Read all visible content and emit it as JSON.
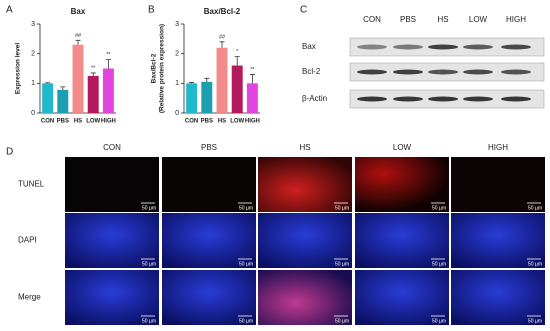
{
  "chart_data": [
    {
      "type": "bar",
      "title": "Bax",
      "ylabel": [
        "Expression level"
      ],
      "categories": [
        "CON",
        "PBS",
        "HS",
        "LOW",
        "HIGH"
      ],
      "values": [
        1.0,
        0.78,
        2.3,
        1.25,
        1.5
      ],
      "errors": [
        0.02,
        0.1,
        0.15,
        0.1,
        0.3
      ],
      "annotations": [
        null,
        null,
        "##",
        "**",
        "**"
      ],
      "colors": [
        "#22b8cc",
        "#1c9fb0",
        "#f48a8a",
        "#b3195e",
        "#e245e0"
      ],
      "ylim": [
        0,
        3
      ],
      "yticks": [
        0,
        1,
        2,
        3
      ]
    },
    {
      "type": "bar",
      "title": "Bax/Bcl-2",
      "ylabel": [
        "Bax/Bcl-2",
        "(Relative protein expression)"
      ],
      "categories": [
        "CON",
        "PBS",
        "HS",
        "LOW",
        "HIGH"
      ],
      "values": [
        1.0,
        1.05,
        2.2,
        1.6,
        1.0
      ],
      "errors": [
        0.03,
        0.12,
        0.2,
        0.3,
        0.3
      ],
      "annotations": [
        null,
        null,
        "##",
        "*",
        "**"
      ],
      "colors": [
        "#22b8cc",
        "#1c9fb0",
        "#f48a8a",
        "#b3195e",
        "#e245e0"
      ],
      "ylim": [
        0,
        3
      ],
      "yticks": [
        0,
        1,
        2,
        3
      ]
    }
  ],
  "panel_labels": [
    "A",
    "B",
    "C",
    "D"
  ],
  "blot": {
    "columns": [
      "CON",
      "PBS",
      "HS",
      "LOW",
      "HIGH"
    ],
    "rows": [
      "Bax",
      "Bcl-2",
      "β-Actin"
    ]
  },
  "microscopy": {
    "columns": [
      "CON",
      "PBS",
      "HS",
      "LOW",
      "HIGH"
    ],
    "rows": [
      "TUNEL",
      "DAPI",
      "Merge"
    ],
    "scale_bar": "50 µm"
  }
}
